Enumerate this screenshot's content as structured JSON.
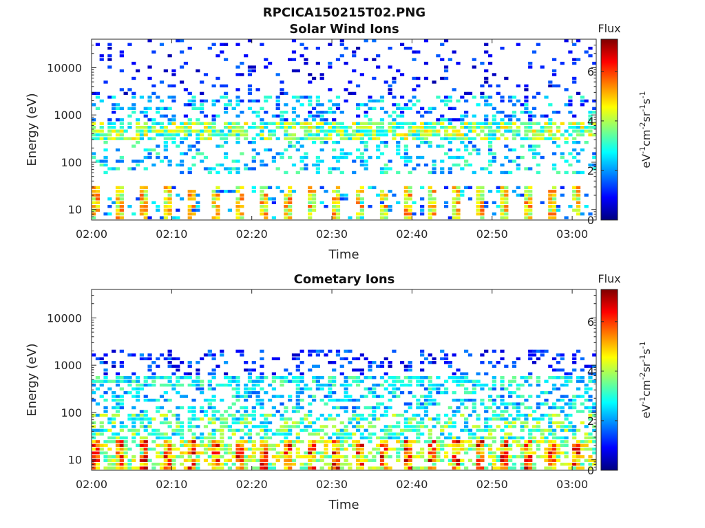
{
  "figure": {
    "title": "RPCICA150215T02.PNG"
  },
  "colorbar_stops": [
    "#00007f",
    "#0000ff",
    "#0080ff",
    "#00ffff",
    "#80ff80",
    "#ffff00",
    "#ff8000",
    "#ff0000",
    "#7f0000"
  ],
  "chart_data": [
    {
      "type": "heatmap",
      "title": "Solar Wind Ions",
      "xlabel": "Time",
      "ylabel": "Energy (eV)",
      "y_scale": "log",
      "ylim": [
        6,
        40000
      ],
      "xlim": [
        "02:00",
        "03:03"
      ],
      "x_ticks": [
        "02:00",
        "02:10",
        "02:20",
        "02:30",
        "02:40",
        "02:50",
        "03:00"
      ],
      "y_ticks": [
        "10",
        "100",
        "1000",
        "10000"
      ],
      "colorbar": {
        "label": "Flux",
        "unit_base": "eV",
        "unit_exp1": "-1",
        "unit_cm": "cm",
        "unit_exp2": "-2",
        "unit_sr": "sr",
        "unit_exp3": "-1",
        "unit_s": "s",
        "unit_exp4": "-1",
        "range": [
          0,
          7.3
        ],
        "ticks": [
          "0",
          "2",
          "4",
          "6"
        ]
      },
      "patterns": {
        "low_band": "intense yellow-green columns at 10-30 eV, pulsed every ~3 min",
        "main_band": "solar wind peak around 300-700 eV (cyan-yellow)",
        "high": "sparse blue noise up to 40 keV"
      }
    },
    {
      "type": "heatmap",
      "title": "Cometary Ions",
      "xlabel": "Time",
      "ylabel": "Energy (eV)",
      "y_scale": "log",
      "ylim": [
        6,
        40000
      ],
      "xlim": [
        "02:00",
        "03:03"
      ],
      "x_ticks": [
        "02:00",
        "02:10",
        "02:20",
        "02:30",
        "02:40",
        "02:50",
        "03:00"
      ],
      "y_ticks": [
        "10",
        "100",
        "1000",
        "10000"
      ],
      "colorbar": {
        "label": "Flux",
        "unit_base": "eV",
        "unit_exp1": "-1",
        "unit_cm": "cm",
        "unit_exp2": "-2",
        "unit_sr": "sr",
        "unit_exp3": "-1",
        "unit_s": "s",
        "unit_exp4": "-1",
        "range": [
          0,
          7.3
        ],
        "ticks": [
          "0",
          "2",
          "4",
          "6"
        ]
      },
      "patterns": {
        "low_band": "intense orange-red columns at 10-25 eV, pulsed every ~3 min",
        "main_band": "cyan-green 300-600 eV band",
        "high": "sparse blue up to 2 keV"
      }
    }
  ]
}
